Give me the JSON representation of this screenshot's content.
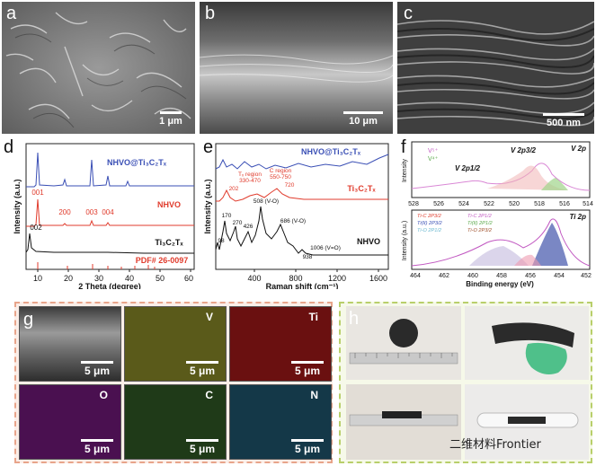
{
  "panels": {
    "a": {
      "label": "a",
      "scale": "1 μm"
    },
    "b": {
      "label": "b",
      "scale": "10 μm"
    },
    "c": {
      "label": "c",
      "scale": "500 nm"
    },
    "d": {
      "label": "d",
      "xlabel": "2 Theta (degree)",
      "ylabel": "Intensity (a.u.)",
      "xticks": [
        "10",
        "20",
        "30",
        "40",
        "50",
        "60"
      ],
      "series_labels": {
        "composite": "NHVO@Ti₃C₂Tₓ",
        "nhvo": "NHVO",
        "mxene": "Ti₃C₂Tₓ",
        "pdf": "PDF# 26-0097"
      },
      "peak_labels": {
        "p001": "001",
        "p200": "200",
        "p003": "003",
        "p004": "004",
        "p002": "002"
      },
      "colors": {
        "composite": "#3a4fb5",
        "nhvo": "#e03b2c",
        "mxene": "#111111",
        "pdf": "#e03b2c"
      }
    },
    "e": {
      "label": "e",
      "xlabel": "Raman shift (cm⁻¹)",
      "ylabel": "Intensity (a.u.)",
      "xticks": [
        "400",
        "800",
        "1200",
        "1600"
      ],
      "series_labels": {
        "composite": "NHVO@Ti₃C₂Tₓ",
        "mxene": "Ti₃C₂Tₓ",
        "nhvo": "NHVO"
      },
      "annotations": {
        "tx_region": "Tₓ region",
        "tx_range": "330-470",
        "c_region": "C region",
        "c_range": "550-750",
        "p202": "202",
        "p720": "720",
        "p98": "98",
        "p170": "170",
        "p270": "270",
        "p426": "426",
        "p508": "508 (V-O)",
        "p686": "686 (V-O)",
        "p938": "938",
        "p1006": "1006 (V=O)"
      }
    },
    "f": {
      "label": "f",
      "top": {
        "corner": "V 2p",
        "xticks": [
          "528",
          "526",
          "524",
          "522",
          "520",
          "518",
          "516",
          "514"
        ],
        "ylabel": "Intensity",
        "legend": [
          "V⁵⁺",
          "V⁴⁺"
        ],
        "peak_labels": {
          "p12": "V 2p1/2",
          "p32": "V 2p3/2"
        }
      },
      "bottom": {
        "corner": "Ti 2p",
        "xticks": [
          "464",
          "462",
          "460",
          "458",
          "456",
          "454",
          "452"
        ],
        "xlabel": "Binding energy (eV)",
        "ylabel": "Intensity (a.u.)",
        "legend": [
          "Ti-C 2P3/2",
          "Ti-C 2P1/2",
          "Ti(II) 2P3/2",
          "Ti(II) 2P1/2",
          "Ti-O 2P1/2",
          "Ti-O 2P3/2"
        ]
      }
    },
    "g": {
      "label": "g",
      "maps": [
        {
          "element": "",
          "scale": "5 μm",
          "color": "#6a6a6a"
        },
        {
          "element": "V",
          "scale": "5 μm",
          "color": "#5a5a1a"
        },
        {
          "element": "Ti",
          "scale": "5 μm",
          "color": "#6a1010"
        },
        {
          "element": "O",
          "scale": "5 μm",
          "color": "#4a1050"
        },
        {
          "element": "C",
          "scale": "5 μm",
          "color": "#1f3a18"
        },
        {
          "element": "N",
          "scale": "5 μm",
          "color": "#143848"
        }
      ]
    },
    "h": {
      "label": "h"
    }
  },
  "watermark": "二维材料Frontier"
}
